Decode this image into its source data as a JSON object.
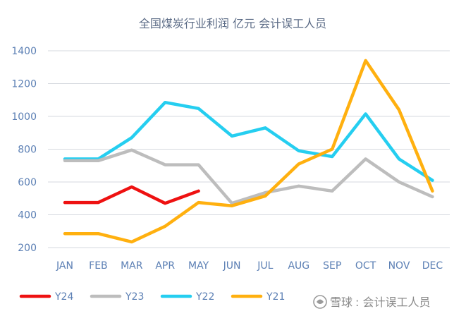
{
  "chart_data": {
    "type": "line",
    "title": "全国煤炭行业利润 亿元 会计误工人员",
    "xlabel": "",
    "ylabel": "",
    "categories": [
      "JAN",
      "FEB",
      "MAR",
      "APR",
      "MAY",
      "JUN",
      "JUL",
      "AUG",
      "SEP",
      "OCT",
      "NOV",
      "DEC"
    ],
    "ylim": [
      200,
      1400
    ],
    "yticks": [
      200,
      400,
      600,
      800,
      1000,
      1200,
      1400
    ],
    "grid": true,
    "legend_position": "bottom-left",
    "series": [
      {
        "name": "Y24",
        "color": "#ee1111",
        "values": [
          475,
          475,
          570,
          470,
          545,
          null,
          null,
          null,
          null,
          null,
          null,
          null
        ]
      },
      {
        "name": "Y23",
        "color": "#bdbdbd",
        "values": [
          730,
          730,
          795,
          705,
          705,
          470,
          535,
          575,
          545,
          740,
          600,
          510
        ]
      },
      {
        "name": "Y22",
        "color": "#25cef0",
        "values": [
          740,
          740,
          870,
          1085,
          1048,
          880,
          930,
          790,
          755,
          1015,
          740,
          610
        ]
      },
      {
        "name": "Y21",
        "color": "#ffb00f",
        "values": [
          285,
          285,
          235,
          330,
          475,
          455,
          515,
          710,
          800,
          1340,
          1040,
          545
        ]
      }
    ]
  },
  "watermark": {
    "brand": "雪球",
    "text": ": 会计误工人员"
  }
}
